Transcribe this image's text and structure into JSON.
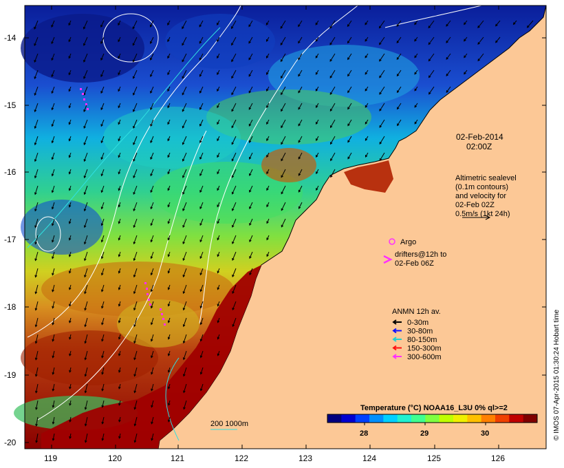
{
  "date_label": "02-Feb-2014",
  "time_label": "02:00Z",
  "altimetry_note": [
    "Altimetric sealevel",
    "(0.1m contours)",
    "and velocity for",
    "02-Feb 02Z",
    "0.5m/s (1kt 24h)"
  ],
  "argo_label": "Argo",
  "drifters_label": [
    "drifters@12h to",
    "02-Feb 06Z"
  ],
  "anmn": {
    "title": "ANMN 12h av.",
    "items": [
      {
        "label": "0-30m",
        "color": "#000000"
      },
      {
        "label": "30-80m",
        "color": "#1010ff"
      },
      {
        "label": "80-150m",
        "color": "#20d0d0"
      },
      {
        "label": "150-300m",
        "color": "#ff1010"
      },
      {
        "label": "300-600m",
        "color": "#ff30ff"
      }
    ]
  },
  "colorbar": {
    "title": "Temperature (°C) NOAA16_L3U 0% ql>=2",
    "ticks": [
      "28",
      "29",
      "30"
    ],
    "colors": [
      "#00007f",
      "#0000d0",
      "#0040ff",
      "#0090ff",
      "#00d0ff",
      "#20f0d0",
      "#40ff90",
      "#80ff40",
      "#c0ff00",
      "#f0f000",
      "#ffc000",
      "#ff8000",
      "#f04000",
      "#c00000",
      "#800000"
    ]
  },
  "scale_label": "200  1000m",
  "credit": "© IMOS 07-Apr-2015 01:30:24 Hobart time",
  "axes": {
    "x_ticks": [
      "119",
      "120",
      "121",
      "122",
      "123",
      "124",
      "125",
      "126"
    ],
    "y_ticks": [
      "-14",
      "-15",
      "-16",
      "-17",
      "-18",
      "-19",
      "-20"
    ]
  },
  "colors": {
    "land": "#fcc896",
    "warm_sea": "#a00000",
    "cool_sea": "#00208f"
  }
}
